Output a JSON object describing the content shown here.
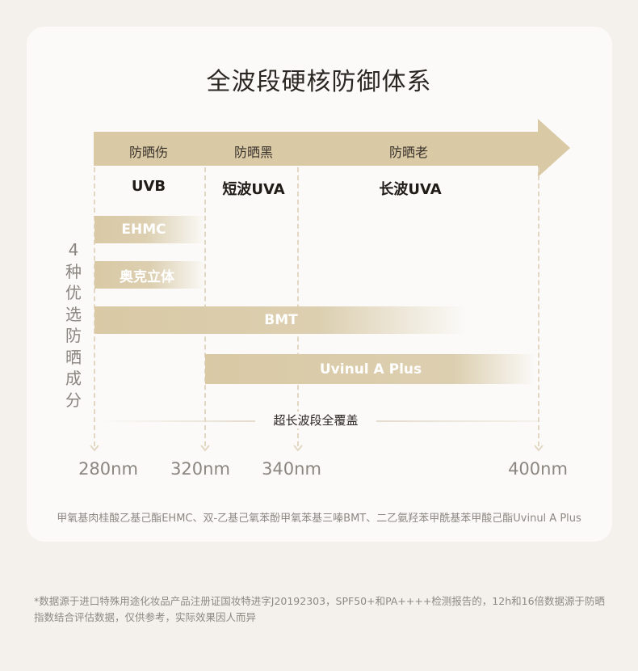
{
  "title": "全波段硬核防御体系",
  "bands": [
    {
      "label": "防晒伤",
      "uv": "UVB"
    },
    {
      "label": "防晒黑",
      "uv": "短波UVA"
    },
    {
      "label": "防晒老",
      "uv": "长波UVA"
    }
  ],
  "side_label": [
    "4",
    "种",
    "优",
    "选",
    "防",
    "晒",
    "成",
    "分"
  ],
  "ingredients": [
    {
      "name": "EHMC"
    },
    {
      "name": "奥克立体"
    },
    {
      "name": "BMT"
    },
    {
      "name": "Uvinul A Plus"
    }
  ],
  "coverage_label": "超长波段全覆盖",
  "ticks": [
    "280nm",
    "320nm",
    "340nm",
    "400nm"
  ],
  "ingredient_note": "甲氧基肉桂酸乙基己酯EHMC、双-乙基己氧苯酚甲氧苯基三嗪BMT、二乙氨羟苯甲酰基苯甲酸己酯Uvinul A Plus",
  "disclaimer": "*数据源于进口特殊用途化妆品产品注册证国妆特进字J20192303，SPF50+和PA++++检测报告的，12h和16倍数据源于防晒指数结合评估数据，仅供参考，实际效果因人而异",
  "colors": {
    "accent": "#d9c9a5",
    "background": "#f4f1ec",
    "card": "#fbfaf8"
  }
}
